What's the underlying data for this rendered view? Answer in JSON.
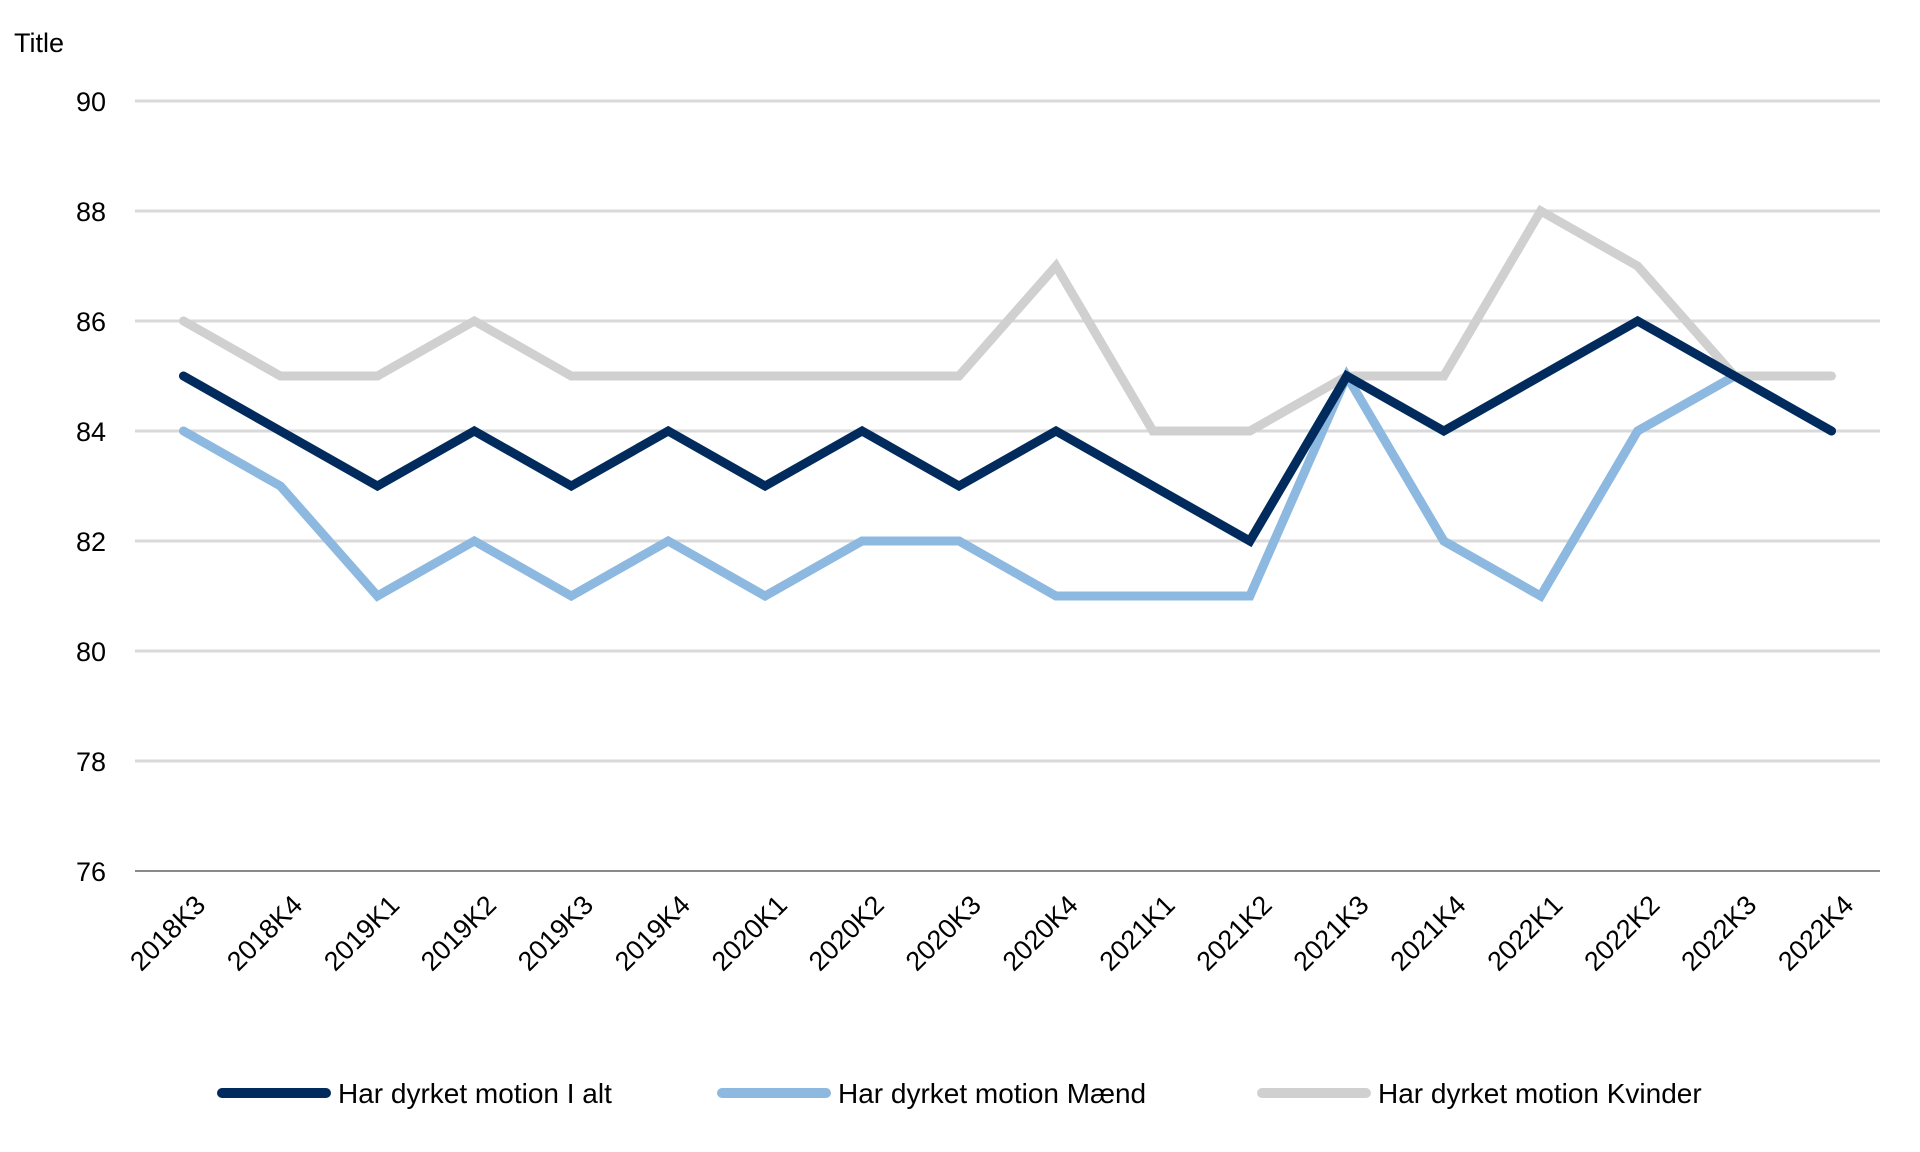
{
  "chart_data": {
    "type": "line",
    "title": "Title",
    "xlabel": "",
    "ylabel": "",
    "ylim": [
      76,
      90
    ],
    "y_ticks": [
      "76",
      "78",
      "80",
      "82",
      "84",
      "86",
      "88",
      "90"
    ],
    "grid": true,
    "legend_position": "bottom",
    "categories": [
      "2018K3",
      "2018K4",
      "2019K1",
      "2019K2",
      "2019K3",
      "2019K4",
      "2020K1",
      "2020K2",
      "2020K3",
      "2020K4",
      "2021K1",
      "2021K2",
      "2021K3",
      "2021K4",
      "2022K1",
      "2022K2",
      "2022K3",
      "2022K4"
    ],
    "series": [
      {
        "name": "Har dyrket motion I alt",
        "color": "#002b5c",
        "values": [
          85,
          84,
          83,
          84,
          83,
          84,
          83,
          84,
          83,
          84,
          83,
          82,
          85,
          84,
          85,
          86,
          85,
          84
        ]
      },
      {
        "name": "Har dyrket motion Mænd",
        "color": "#8db8e0",
        "values": [
          84,
          83,
          81,
          82,
          81,
          82,
          81,
          82,
          82,
          81,
          81,
          81,
          85,
          82,
          81,
          84,
          85,
          84
        ]
      },
      {
        "name": "Har dyrket motion Kvinder",
        "color": "#d0d0d0",
        "values": [
          86,
          85,
          85,
          86,
          85,
          85,
          85,
          85,
          85,
          87,
          84,
          84,
          85,
          85,
          88,
          87,
          85,
          85
        ]
      }
    ]
  }
}
